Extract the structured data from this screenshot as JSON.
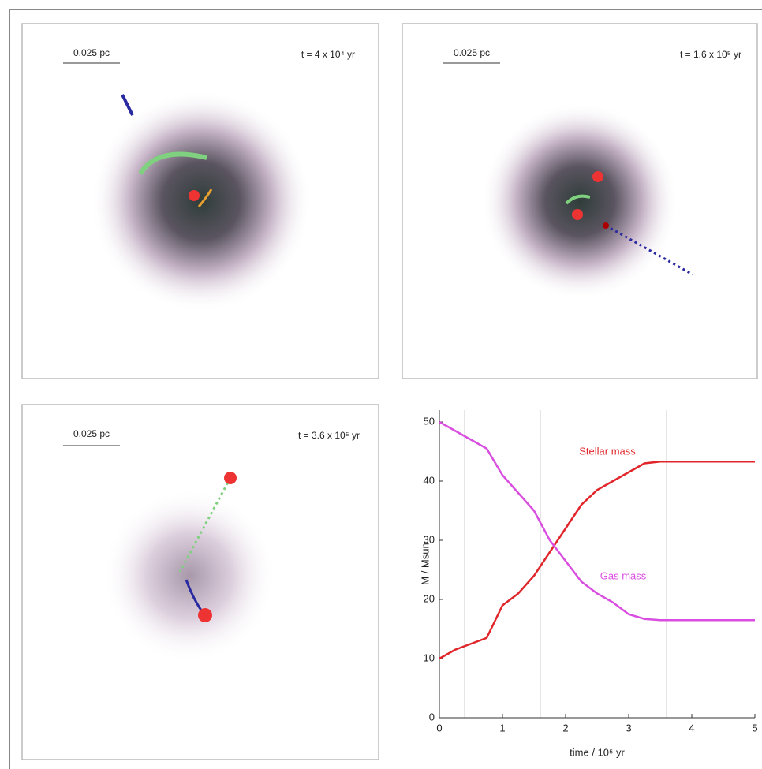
{
  "panels": [
    {
      "scale": "0.025 pc",
      "time": "t = 4 x 10⁴ yr"
    },
    {
      "scale": "0.025 pc",
      "time": "t = 1.6 x 10⁵ yr"
    },
    {
      "scale": "0.025 pc",
      "time": "t = 3.6 x 10⁵ yr"
    }
  ],
  "chart_data": {
    "type": "line",
    "x_label": "time / 10⁵ yr",
    "y_label": "M / Msun",
    "x": [
      0,
      0.25,
      0.5,
      0.75,
      1,
      1.25,
      1.5,
      1.75,
      2,
      2.25,
      2.5,
      2.75,
      3,
      3.25,
      3.5,
      4,
      4.5,
      5
    ],
    "series": [
      {
        "name": "Stellar mass",
        "color": "#e0262a",
        "values": [
          10,
          11.5,
          12.5,
          13.5,
          19,
          21,
          24,
          28,
          32,
          36,
          38.5,
          40,
          41.5,
          43,
          43.3,
          43.3,
          43.3,
          43.3
        ]
      },
      {
        "name": "Gas mass",
        "color": "#d94ee0",
        "values": [
          50,
          48.5,
          47,
          45.5,
          41,
          38,
          35,
          30,
          26.5,
          23,
          21,
          19.5,
          17.5,
          16.7,
          16.5,
          16.5,
          16.5,
          16.5
        ]
      }
    ],
    "vlines": [
      0.4,
      1.6,
      3.6
    ],
    "xlim": [
      0,
      5
    ],
    "xticks": [
      0,
      1,
      2,
      3,
      4,
      5
    ],
    "ylim": [
      0,
      52
    ],
    "yticks": [
      0,
      10,
      20,
      30,
      40,
      50
    ]
  }
}
